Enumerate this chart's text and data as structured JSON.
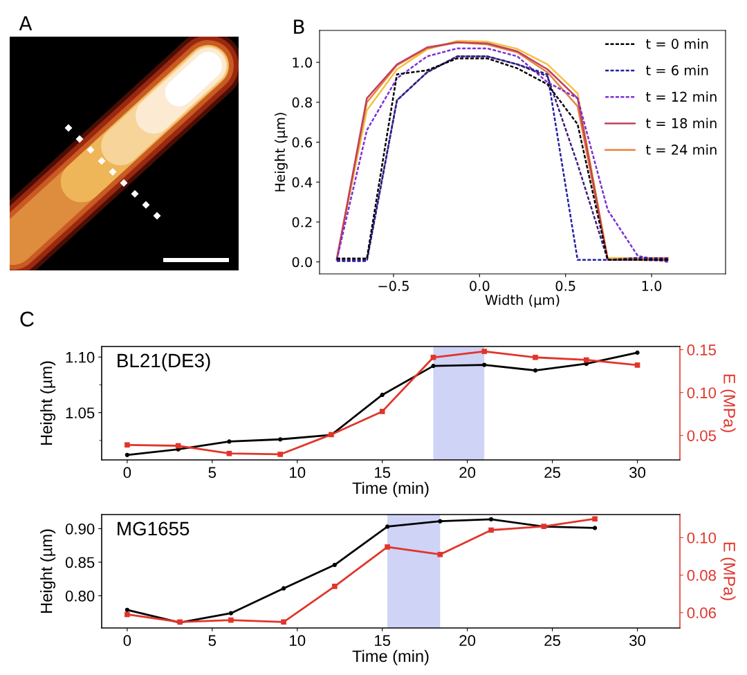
{
  "chart_data": [
    {
      "type": "other",
      "annotations": [
        "A"
      ]
    },
    {
      "type": "line",
      "annotations": [
        "B"
      ],
      "xlabel": "Width (µm)",
      "ylabel": "Height (µm)",
      "legend": "top right",
      "x": [
        -0.83,
        -0.655,
        -0.48,
        -0.305,
        -0.13,
        0.045,
        0.22,
        0.395,
        0.57,
        0.745,
        0.92,
        1.095
      ],
      "xlim": [
        -0.93,
        1.43
      ],
      "xticks": [
        {
          "value": -0.5,
          "label": "−0.5"
        },
        {
          "value": 0,
          "label": "0.0"
        },
        {
          "value": 0.5,
          "label": "0.5"
        },
        {
          "value": 1,
          "label": "1.0"
        }
      ],
      "ylim": [
        -0.06,
        1.16
      ],
      "yticks": [
        {
          "value": 0,
          "label": "0.0"
        },
        {
          "value": 0.2,
          "label": "0.2"
        },
        {
          "value": 0.4,
          "label": "0.4"
        },
        {
          "value": 0.6,
          "label": "0.6"
        },
        {
          "value": 0.8,
          "label": "0.8"
        },
        {
          "value": 1,
          "label": "1.0"
        }
      ],
      "series": [
        {
          "name": "t = 0 min",
          "color": "#000000",
          "line_style": "dashed",
          "values": [
            0.017,
            0.017,
            0.94,
            0.96,
            1.02,
            1.02,
            0.97,
            0.89,
            0.69,
            0.01,
            0.01,
            0.012
          ]
        },
        {
          "color": "#3b1c78",
          "line_style": "dashed",
          "values": [
            0.01,
            0.01,
            0.81,
            0.95,
            1.03,
            1.03,
            0.99,
            0.93,
            0.49,
            0.01,
            0.01,
            0.006
          ]
        },
        {
          "name": "t = 6 min",
          "color": "#2020a0",
          "line_style": "dashed",
          "values": [
            0.004,
            0.004,
            0.81,
            0.95,
            1.03,
            1.03,
            0.99,
            0.94,
            0.01,
            0.01,
            0.02,
            0.018
          ]
        },
        {
          "name": "t = 12 min",
          "color": "#7a30d8",
          "line_style": "dashed",
          "values": [
            0.01,
            0.66,
            0.92,
            1.03,
            1.07,
            1.07,
            1.03,
            0.9,
            0.82,
            0.26,
            0.03,
            0.0
          ]
        },
        {
          "name": "t = 18 min",
          "color": "#c0405e",
          "line_style": "solid",
          "values": [
            0.01,
            0.82,
            0.99,
            1.075,
            1.1,
            1.095,
            1.055,
            0.965,
            0.82,
            0.01,
            0.01,
            0.01
          ]
        },
        {
          "name": "t = 24 min",
          "color": "#e8843c",
          "line_style": "solid",
          "values": [
            0.01,
            0.8,
            0.985,
            1.07,
            1.1,
            1.09,
            1.05,
            0.95,
            0.78,
            0.01,
            0.015,
            0.02
          ]
        },
        {
          "color": "#f4c141",
          "line_style": "solid",
          "values": [
            0.02,
            0.76,
            0.965,
            1.065,
            1.108,
            1.104,
            1.067,
            0.99,
            0.845,
            0.02,
            0.02,
            0.02
          ]
        }
      ]
    },
    {
      "type": "line",
      "title": "BL21(DE3)",
      "annotations": [
        "C"
      ],
      "xlabel": "Time (min)",
      "ylabel": "Height (µm)",
      "y2label": "E (MPa)",
      "x": [
        0,
        3,
        6,
        9,
        12,
        15,
        18,
        21,
        24,
        27,
        30
      ],
      "xlim": [
        -1.5,
        32.5
      ],
      "xticks": [
        0,
        5,
        10,
        15,
        20,
        25,
        30
      ],
      "ylim": [
        1.0075,
        1.1095
      ],
      "yticks": [
        {
          "value": 1.025,
          "label": null
        },
        {
          "value": 1.05,
          "label": "1.05"
        },
        {
          "value": 1.075,
          "label": null
        },
        {
          "value": 1.1,
          "label": "1.10"
        }
      ],
      "y2lim": [
        0.0215,
        0.1537
      ],
      "y2ticks": [
        {
          "value": 0.05,
          "label": "0.05"
        },
        {
          "value": 0.1,
          "label": "0.10"
        },
        {
          "value": 0.15,
          "label": "0.15"
        }
      ],
      "bands": [
        {
          "axis": "x",
          "from": 18,
          "to": 21,
          "color": "#cfd3f5"
        }
      ],
      "series": [
        {
          "color": "#000000",
          "marker": "circle",
          "values": [
            1.012,
            1.017,
            1.024,
            1.026,
            1.03,
            1.066,
            1.092,
            1.093,
            1.088,
            1.094,
            1.104
          ]
        },
        {
          "color": "#e0352b",
          "marker": "square",
          "axis": "y2",
          "values": [
            0.039,
            0.038,
            0.029,
            0.028,
            0.051,
            0.078,
            0.141,
            0.148,
            0.141,
            0.138,
            0.132
          ]
        }
      ]
    },
    {
      "type": "line",
      "title": "MG1655",
      "xlabel": "Time (min)",
      "ylabel": "Height (µm)",
      "y2label": "E (MPa)",
      "x": [
        0,
        3.1,
        6.1,
        9.2,
        12.2,
        15.3,
        18.4,
        21.4,
        24.5,
        27.5
      ],
      "xlim": [
        -1.5,
        32.5
      ],
      "xticks": [
        0,
        5,
        10,
        15,
        20,
        25,
        30
      ],
      "ylim": [
        0.752,
        0.921
      ],
      "yticks": [
        {
          "value": 0.8,
          "label": "0.80"
        },
        {
          "value": 0.85,
          "label": "0.85"
        },
        {
          "value": 0.9,
          "label": "0.90"
        }
      ],
      "y2lim": [
        0.0518,
        0.1123
      ],
      "y2ticks": [
        {
          "value": 0.06,
          "label": "0.06"
        },
        {
          "value": 0.08,
          "label": "0.08"
        },
        {
          "value": 0.1,
          "label": "0.10"
        }
      ],
      "bands": [
        {
          "axis": "x",
          "from": 15.3,
          "to": 18.4,
          "color": "#cfd3f5"
        }
      ],
      "series": [
        {
          "color": "#000000",
          "marker": "circle",
          "values": [
            0.779,
            0.76,
            0.774,
            0.811,
            0.846,
            0.903,
            0.911,
            0.914,
            0.903,
            0.901
          ]
        },
        {
          "color": "#e0352b",
          "marker": "square",
          "axis": "y2",
          "values": [
            0.059,
            0.055,
            0.056,
            0.055,
            0.074,
            0.095,
            0.091,
            0.104,
            0.106,
            0.11
          ]
        }
      ]
    }
  ]
}
